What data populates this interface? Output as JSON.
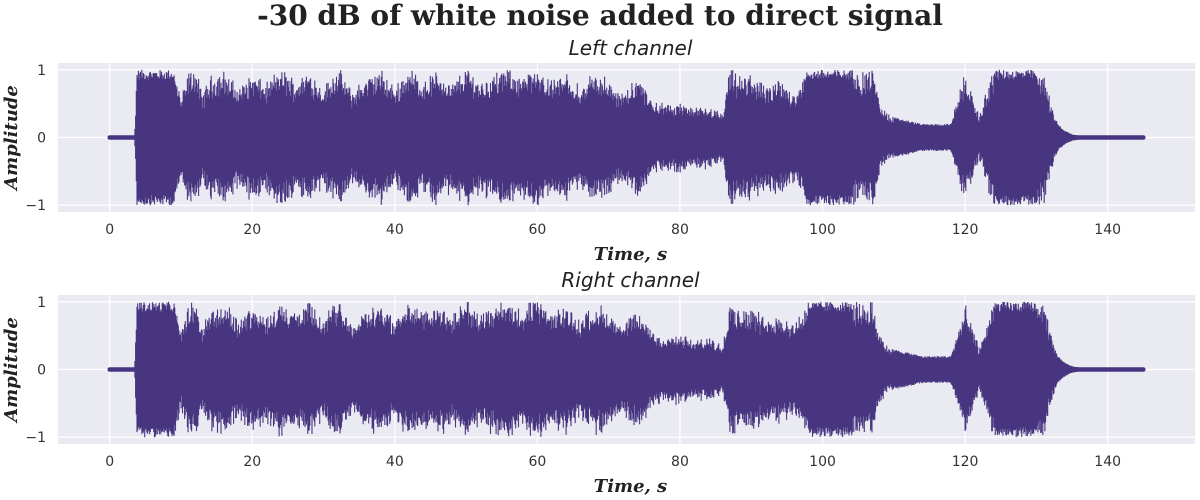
{
  "figure": {
    "title": "-30 dB of white noise added to direct signal"
  },
  "chart_data": [
    {
      "type": "line",
      "title": "Left channel",
      "xlabel": "Time, s",
      "ylabel": "Amplitude",
      "xlim": [
        -7.25,
        152.25
      ],
      "ylim": [
        -1.1,
        1.1
      ],
      "xticks": [
        0,
        20,
        40,
        60,
        80,
        100,
        120,
        140
      ],
      "xtick_labels": [
        "0",
        "20",
        "40",
        "60",
        "80",
        "100",
        "120",
        "140"
      ],
      "yticks": [
        -1,
        0,
        1
      ],
      "ytick_labels": [
        "−1",
        "0",
        "1"
      ],
      "grid": true,
      "color": "#483580",
      "series": [
        {
          "envelope_time": [
            0,
            3.5,
            3.8,
            6,
            9,
            10,
            11,
            12,
            13,
            14,
            16,
            18,
            20,
            22,
            24,
            26,
            28,
            30,
            32,
            34,
            36,
            38,
            40,
            42,
            44,
            46,
            48,
            50,
            52,
            54,
            56,
            58,
            60,
            62,
            64,
            66,
            68,
            70,
            72,
            74,
            76,
            78,
            80,
            82,
            84,
            86,
            87,
            88,
            90,
            92,
            94,
            96,
            98,
            100,
            102,
            104,
            106,
            107,
            108,
            109,
            110,
            112,
            114,
            116,
            118,
            120,
            122,
            124,
            126,
            128,
            130,
            131,
            132,
            133,
            134,
            135,
            136,
            138,
            140,
            145
          ],
          "envelope_amplitude": [
            0.02,
            0.02,
            1.0,
            1.0,
            1.0,
            0.55,
            0.9,
            1.0,
            0.6,
            0.85,
            0.95,
            0.7,
            0.9,
            0.75,
            1.0,
            0.8,
            0.95,
            0.7,
            1.0,
            0.65,
            0.85,
            0.95,
            0.7,
            1.0,
            0.8,
            0.95,
            0.75,
            1.0,
            0.8,
            0.9,
            1.0,
            0.85,
            1.0,
            0.8,
            0.9,
            0.7,
            0.95,
            0.8,
            0.6,
            0.85,
            0.55,
            0.45,
            0.5,
            0.4,
            0.45,
            0.35,
            1.0,
            0.85,
            0.9,
            0.7,
            0.8,
            0.65,
            1.0,
            1.0,
            1.0,
            1.0,
            0.9,
            1.0,
            0.5,
            0.35,
            0.3,
            0.25,
            0.2,
            0.2,
            0.2,
            0.9,
            0.3,
            1.0,
            1.0,
            1.0,
            1.0,
            0.95,
            0.5,
            0.2,
            0.1,
            0.05,
            0.03,
            0.025,
            0.02,
            0.02
          ]
        }
      ]
    },
    {
      "type": "line",
      "title": "Right channel",
      "xlabel": "Time, s",
      "ylabel": "Amplitude",
      "xlim": [
        -7.25,
        152.25
      ],
      "ylim": [
        -1.1,
        1.1
      ],
      "xticks": [
        0,
        20,
        40,
        60,
        80,
        100,
        120,
        140
      ],
      "xtick_labels": [
        "0",
        "20",
        "40",
        "60",
        "80",
        "100",
        "120",
        "140"
      ],
      "yticks": [
        -1,
        0,
        1
      ],
      "ytick_labels": [
        "−1",
        "0",
        "1"
      ],
      "grid": true,
      "color": "#483580",
      "series": [
        {
          "envelope_time": [
            0,
            3.5,
            3.8,
            6,
            9,
            10,
            11,
            12,
            13,
            14,
            16,
            18,
            20,
            22,
            24,
            26,
            28,
            30,
            32,
            34,
            36,
            38,
            40,
            42,
            44,
            46,
            48,
            50,
            52,
            54,
            56,
            58,
            60,
            62,
            64,
            66,
            68,
            70,
            72,
            74,
            76,
            78,
            80,
            82,
            84,
            86,
            87,
            88,
            90,
            92,
            94,
            96,
            98,
            100,
            102,
            104,
            106,
            107,
            108,
            109,
            110,
            112,
            114,
            116,
            118,
            120,
            122,
            124,
            126,
            128,
            130,
            131,
            132,
            133,
            134,
            135,
            136,
            138,
            140,
            145
          ],
          "envelope_amplitude": [
            0.02,
            0.02,
            1.0,
            1.0,
            1.0,
            0.55,
            0.9,
            1.0,
            0.6,
            0.85,
            0.95,
            0.7,
            0.9,
            0.75,
            1.0,
            0.8,
            0.95,
            0.7,
            1.0,
            0.65,
            0.85,
            0.95,
            0.7,
            1.0,
            0.8,
            0.95,
            0.75,
            1.0,
            0.8,
            0.9,
            1.0,
            0.85,
            1.0,
            0.8,
            0.9,
            0.7,
            0.95,
            0.8,
            0.6,
            0.85,
            0.55,
            0.45,
            0.5,
            0.4,
            0.45,
            0.35,
            1.0,
            0.85,
            0.9,
            0.7,
            0.8,
            0.65,
            1.0,
            1.0,
            1.0,
            1.0,
            0.9,
            1.0,
            0.5,
            0.35,
            0.3,
            0.25,
            0.2,
            0.2,
            0.2,
            0.9,
            0.3,
            1.0,
            1.0,
            1.0,
            1.0,
            0.95,
            0.5,
            0.2,
            0.1,
            0.05,
            0.03,
            0.025,
            0.02,
            0.02
          ]
        }
      ]
    }
  ]
}
